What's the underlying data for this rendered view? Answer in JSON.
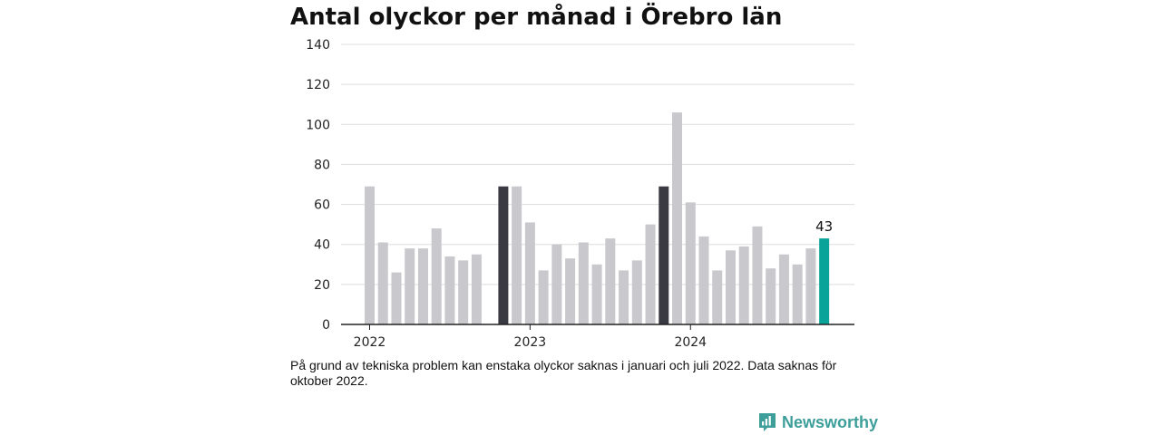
{
  "chart_data": {
    "type": "bar",
    "title": "Antal olyckor per månad i Örebro län",
    "xlabel": "",
    "ylabel": "",
    "ylim": [
      0,
      140
    ],
    "yticks": [
      "0",
      "20",
      "40",
      "60",
      "80",
      "100",
      "120",
      "140"
    ],
    "grid": true,
    "year_labels": [
      {
        "label": "2022",
        "period": "2022-01"
      },
      {
        "label": "2023",
        "period": "2023-01"
      },
      {
        "label": "2024",
        "period": "2024-01"
      }
    ],
    "series": [
      {
        "values": [
          {
            "period": "2022-01",
            "value": 69
          },
          {
            "period": "2022-02",
            "value": 41
          },
          {
            "period": "2022-03",
            "value": 26
          },
          {
            "period": "2022-04",
            "value": 38
          },
          {
            "period": "2022-05",
            "value": 38
          },
          {
            "period": "2022-06",
            "value": 48
          },
          {
            "period": "2022-07",
            "value": 34
          },
          {
            "period": "2022-08",
            "value": 32
          },
          {
            "period": "2022-09",
            "value": 35
          },
          {
            "period": "2022-10",
            "value": null
          },
          {
            "period": "2022-11",
            "value": 69
          },
          {
            "period": "2022-12",
            "value": 69
          },
          {
            "period": "2023-01",
            "value": 51
          },
          {
            "period": "2023-02",
            "value": 27
          },
          {
            "period": "2023-03",
            "value": 40
          },
          {
            "period": "2023-04",
            "value": 33
          },
          {
            "period": "2023-05",
            "value": 41
          },
          {
            "period": "2023-06",
            "value": 30
          },
          {
            "period": "2023-07",
            "value": 43
          },
          {
            "period": "2023-08",
            "value": 27
          },
          {
            "period": "2023-09",
            "value": 32
          },
          {
            "period": "2023-10",
            "value": 50
          },
          {
            "period": "2023-11",
            "value": 69
          },
          {
            "period": "2023-12",
            "value": 106
          },
          {
            "period": "2024-01",
            "value": 61
          },
          {
            "period": "2024-02",
            "value": 44
          },
          {
            "period": "2024-03",
            "value": 27
          },
          {
            "period": "2024-04",
            "value": 37
          },
          {
            "period": "2024-05",
            "value": 39
          },
          {
            "period": "2024-06",
            "value": 49
          },
          {
            "period": "2024-07",
            "value": 28
          },
          {
            "period": "2024-08",
            "value": 35
          },
          {
            "period": "2024-09",
            "value": 30
          },
          {
            "period": "2024-10",
            "value": 38
          },
          {
            "period": "2024-11",
            "value": 43
          }
        ]
      }
    ],
    "highlighted_periods": [
      "2022-11",
      "2023-11"
    ],
    "current_period": "2024-11",
    "data_labels": [
      {
        "period": "2024-11",
        "text": "43"
      }
    ],
    "colors": {
      "bar": "#c8c8cd",
      "highlight": "#3a3a42",
      "current": "#0aa39a",
      "grid": "#dddddd",
      "axis": "#222222"
    }
  },
  "note": "På grund av tekniska problem kan enstaka olyckor saknas i januari och juli 2022. Data saknas för oktober 2022.",
  "brand": {
    "name": "Newsworthy",
    "icon": "bar-chart-logo-icon",
    "color": "#3d9e9a"
  }
}
